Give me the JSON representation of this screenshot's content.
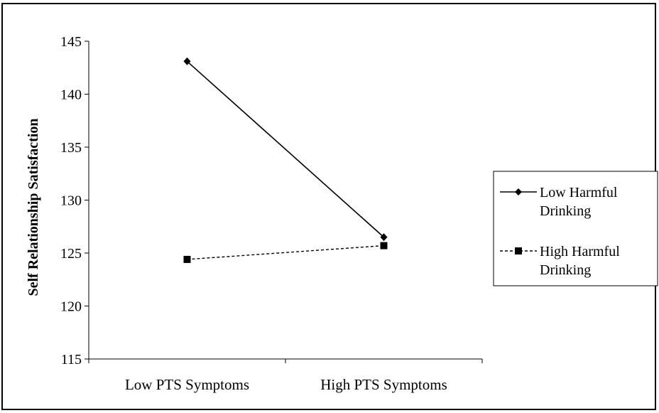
{
  "chart_data": {
    "type": "line",
    "categories": [
      "Low PTS Symptoms",
      "High PTS Symptoms"
    ],
    "ylabel": "Self Relationship Satisfaction",
    "ylim": [
      115,
      145
    ],
    "yticks": [
      115,
      120,
      125,
      130,
      135,
      140,
      145
    ],
    "grid": false,
    "legend_position": "right",
    "series": [
      {
        "name": "Low Harmful Drinking",
        "values": [
          143.1,
          126.5
        ],
        "marker": "diamond",
        "dash": "solid",
        "color": "#000000"
      },
      {
        "name": "High Harmful Drinking",
        "values": [
          124.4,
          125.7
        ],
        "marker": "square",
        "dash": "dashed",
        "color": "#000000"
      }
    ]
  }
}
